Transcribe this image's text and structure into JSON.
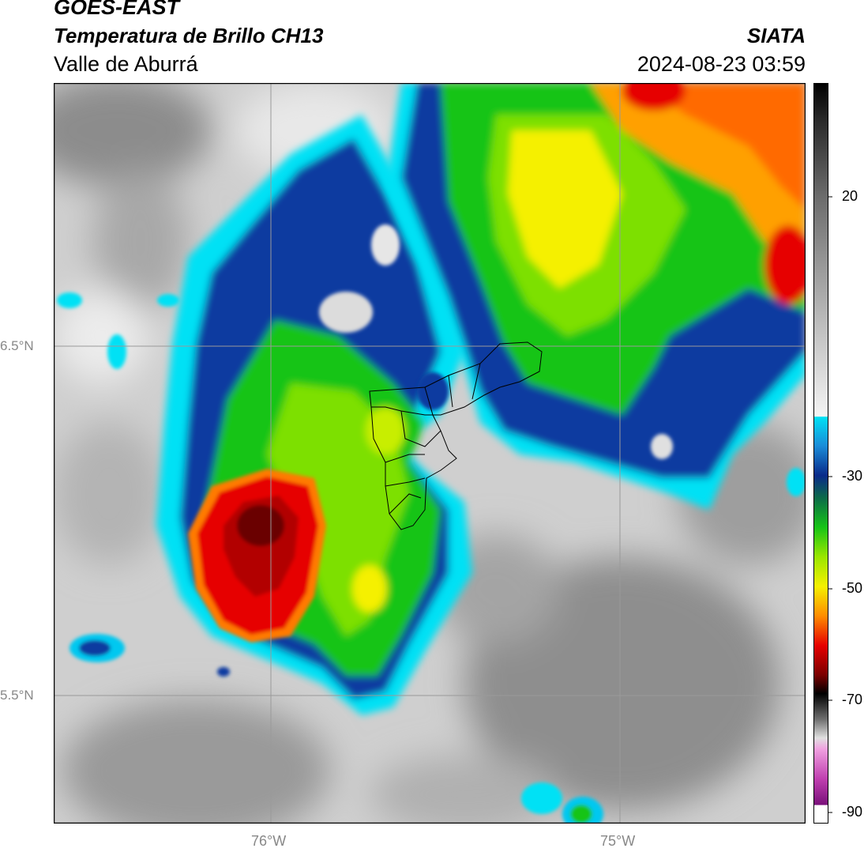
{
  "header": {
    "satellite": "GOES-EAST",
    "product": "Temperatura de Brillo CH13",
    "region": "Valle de Aburrá",
    "agency": "SIATA",
    "datetime": "2024-08-23 03:59"
  },
  "map": {
    "lat_labels": [
      "6.5°N",
      "5.5°N"
    ],
    "lon_labels": [
      "76°W",
      "75°W"
    ],
    "gridlines": true,
    "boundary": "Valle de Aburrá municipalities"
  },
  "colorbar": {
    "ticks": [
      "20",
      "-30",
      "-50",
      "-70",
      "-90"
    ],
    "range": [
      -90,
      30
    ],
    "colors": {
      "warm_gray_dark": "#6e6e6e",
      "cyan": "#00e1f5",
      "blue": "#0a2a8a",
      "green": "#16c416",
      "yellow": "#f5f000",
      "orange": "#ff7a00",
      "red": "#e60000",
      "dark_red": "#5a0000",
      "magenta": "#e060c8"
    }
  }
}
